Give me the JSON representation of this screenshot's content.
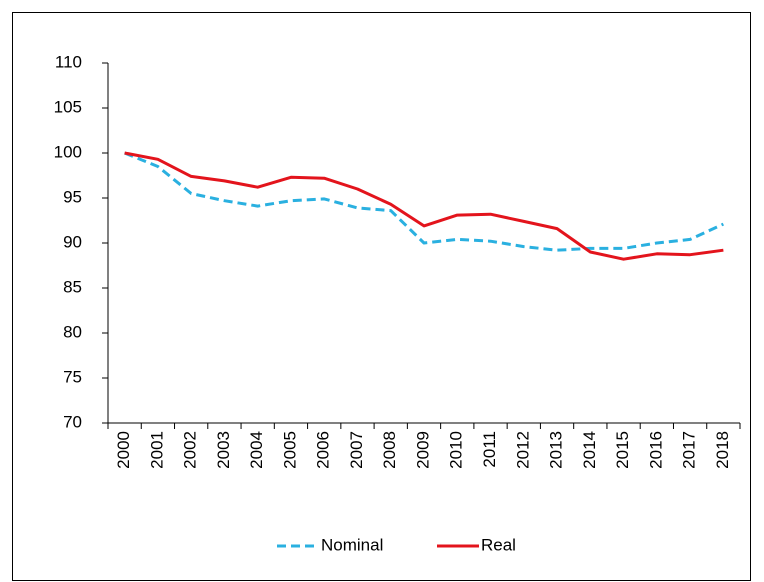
{
  "chart_data": {
    "type": "line",
    "categories": [
      "2000",
      "2001",
      "2002",
      "2003",
      "2004",
      "2005",
      "2006",
      "2007",
      "2008",
      "2009",
      "2010",
      "2011",
      "2012",
      "2013",
      "2014",
      "2015",
      "2016",
      "2017",
      "2018"
    ],
    "series": [
      {
        "name": "Nominal",
        "color": "#2ab0e0",
        "style": "dashed",
        "values": [
          100,
          98.5,
          95.5,
          94.7,
          94.1,
          94.7,
          94.9,
          93.9,
          93.6,
          90.0,
          90.4,
          90.2,
          89.6,
          89.2,
          89.4,
          89.4,
          90.0,
          90.4,
          92.1
        ]
      },
      {
        "name": "Real",
        "color": "#e3141c",
        "style": "solid",
        "values": [
          100,
          99.3,
          97.4,
          96.9,
          96.2,
          97.3,
          97.2,
          96.0,
          94.3,
          91.9,
          93.1,
          93.2,
          92.4,
          91.6,
          89.0,
          88.2,
          88.8,
          88.7,
          89.2
        ]
      }
    ],
    "ylim": [
      70,
      110
    ],
    "yticks": [
      70,
      75,
      80,
      85,
      90,
      95,
      100,
      105,
      110
    ],
    "legend": "bottom"
  }
}
